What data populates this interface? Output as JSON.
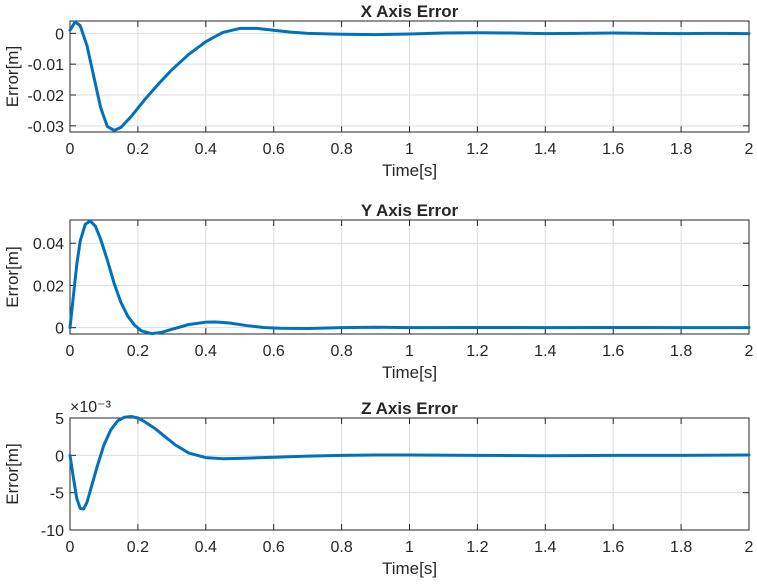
{
  "chart_data": [
    {
      "type": "line",
      "title": "X Axis Error",
      "xlabel": "Time[s]",
      "ylabel": "Error[m]",
      "xlim": [
        0,
        2
      ],
      "ylim": [
        -0.032,
        0.004
      ],
      "xticks": [
        "0",
        "0.2",
        "0.4",
        "0.6",
        "0.8",
        "1",
        "1.2",
        "1.4",
        "1.6",
        "1.8",
        "2"
      ],
      "yticks": [
        "-0.03",
        "-0.02",
        "-0.01",
        "0"
      ],
      "ytick_values": [
        -0.03,
        -0.02,
        -0.01,
        0
      ],
      "exponent_label": "",
      "grid": true,
      "series_color": "#0072BD",
      "x": [
        0,
        0.015,
        0.03,
        0.05,
        0.07,
        0.09,
        0.11,
        0.13,
        0.15,
        0.18,
        0.22,
        0.26,
        0.3,
        0.35,
        0.4,
        0.45,
        0.5,
        0.55,
        0.6,
        0.65,
        0.7,
        0.8,
        0.9,
        1.0,
        1.1,
        1.2,
        1.3,
        1.4,
        1.5,
        1.6,
        1.7,
        1.8,
        1.9,
        2.0
      ],
      "y": [
        0.001,
        0.0037,
        0.0025,
        -0.004,
        -0.014,
        -0.024,
        -0.0302,
        -0.0315,
        -0.0305,
        -0.027,
        -0.0215,
        -0.0165,
        -0.0118,
        -0.0068,
        -0.0027,
        0.0003,
        0.0016,
        0.0016,
        0.001,
        0.0004,
        0.0,
        -0.0003,
        -0.0004,
        -0.0002,
        0.0001,
        0.0002,
        0.0001,
        -0.0001,
        0.0,
        0.0001,
        0.0,
        -0.0001,
        0.0,
        -0.0001
      ]
    },
    {
      "type": "line",
      "title": "Y Axis Error",
      "xlabel": "Time[s]",
      "ylabel": "Error[m]",
      "xlim": [
        0,
        2
      ],
      "ylim": [
        -0.003,
        0.051
      ],
      "xticks": [
        "0",
        "0.2",
        "0.4",
        "0.6",
        "0.8",
        "1",
        "1.2",
        "1.4",
        "1.6",
        "1.8",
        "2"
      ],
      "yticks": [
        "0",
        "0.02",
        "0.04"
      ],
      "ytick_values": [
        0,
        0.02,
        0.04
      ],
      "exponent_label": "",
      "grid": true,
      "series_color": "#0072BD",
      "x": [
        0,
        0.01,
        0.02,
        0.03,
        0.045,
        0.06,
        0.075,
        0.09,
        0.11,
        0.13,
        0.15,
        0.17,
        0.19,
        0.21,
        0.24,
        0.27,
        0.3,
        0.35,
        0.4,
        0.43,
        0.47,
        0.52,
        0.57,
        0.62,
        0.7,
        0.8,
        0.9,
        1.0,
        1.2,
        1.4,
        1.6,
        1.8,
        2.0
      ],
      "y": [
        0.0,
        0.015,
        0.03,
        0.041,
        0.049,
        0.0505,
        0.048,
        0.042,
        0.032,
        0.021,
        0.012,
        0.0055,
        0.0012,
        -0.0015,
        -0.0028,
        -0.0022,
        -0.0008,
        0.0015,
        0.0026,
        0.0027,
        0.0022,
        0.001,
        0.0001,
        -0.0003,
        -0.0004,
        0.0,
        0.0002,
        0.0,
        0.0001,
        0.0,
        0.0001,
        0.0,
        0.0
      ]
    },
    {
      "type": "line",
      "title": "Z Axis Error",
      "xlabel": "Time[s]",
      "ylabel": "Error[m]",
      "xlim": [
        0,
        2
      ],
      "ylim": [
        -10,
        5
      ],
      "xticks": [
        "0",
        "0.2",
        "0.4",
        "0.6",
        "0.8",
        "1",
        "1.2",
        "1.4",
        "1.6",
        "1.8",
        "2"
      ],
      "yticks": [
        "-10",
        "-5",
        "0",
        "5"
      ],
      "ytick_values": [
        -10,
        -5,
        0,
        5
      ],
      "exponent_label": "×10⁻³",
      "grid": true,
      "series_color": "#0072BD",
      "x": [
        0,
        0.01,
        0.02,
        0.03,
        0.04,
        0.05,
        0.06,
        0.08,
        0.1,
        0.12,
        0.14,
        0.16,
        0.18,
        0.2,
        0.22,
        0.25,
        0.28,
        0.31,
        0.35,
        0.4,
        0.45,
        0.5,
        0.6,
        0.7,
        0.8,
        0.9,
        1.0,
        1.2,
        1.4,
        1.6,
        1.8,
        2.0
      ],
      "y": [
        0.0,
        -3.0,
        -5.8,
        -7.1,
        -7.2,
        -6.3,
        -4.7,
        -1.5,
        1.4,
        3.4,
        4.6,
        5.1,
        5.2,
        5.0,
        4.5,
        3.6,
        2.5,
        1.4,
        0.3,
        -0.3,
        -0.45,
        -0.4,
        -0.25,
        -0.1,
        0.0,
        0.05,
        0.05,
        0.0,
        -0.05,
        0.0,
        0.0,
        0.05
      ]
    }
  ]
}
